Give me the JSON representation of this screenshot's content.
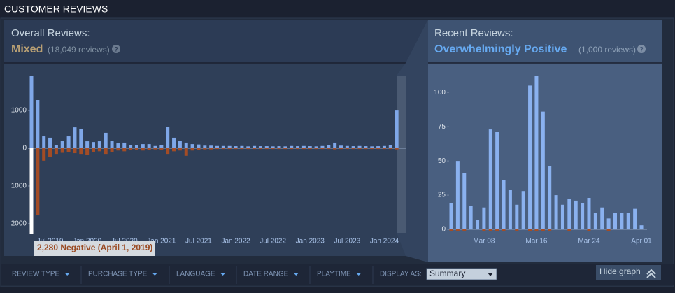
{
  "header": {
    "title": "CUSTOMER REVIEWS"
  },
  "chart_data": [
    {
      "type": "bar",
      "title": "Overall Reviews:",
      "rating": "Mixed",
      "count": "(18,049 reviews)",
      "help": "?",
      "annotation": "2,280 Negative (April 1, 2019)",
      "categories": [
        null,
        null,
        null,
        "Jul 2019",
        null,
        null,
        null,
        null,
        null,
        "Jan 2020",
        null,
        null,
        null,
        null,
        null,
        "Jul 2020",
        null,
        null,
        null,
        null,
        null,
        "Jan 2021",
        null,
        null,
        null,
        null,
        null,
        "Jul 2021",
        null,
        null,
        null,
        null,
        null,
        "Jan 2022",
        null,
        null,
        null,
        null,
        null,
        "Jul 2022",
        null,
        null,
        null,
        null,
        null,
        "Jan 2023",
        null,
        null,
        null,
        null,
        null,
        "Jul 2023",
        null,
        null,
        null,
        null,
        null,
        "Jan 2024",
        null,
        null
      ],
      "series": [
        {
          "color": "#7fa7e8",
          "values": [
            1925,
            1280,
            315,
            280,
            90,
            200,
            315,
            555,
            520,
            185,
            165,
            185,
            410,
            200,
            130,
            150,
            75,
            90,
            110,
            110,
            60,
            80,
            575,
            280,
            200,
            150,
            110,
            100,
            70,
            70,
            60,
            60,
            60,
            55,
            60,
            50,
            60,
            55,
            55,
            50,
            55,
            50,
            60,
            55,
            60,
            55,
            50,
            60,
            80,
            150,
            70,
            60,
            55,
            60,
            55,
            50,
            55,
            60,
            90,
            1000
          ]
        },
        {
          "color": "#a34c25",
          "values": [
            -2280,
            -1780,
            -330,
            -230,
            -150,
            -120,
            -100,
            -130,
            -150,
            -170,
            -100,
            -80,
            -150,
            -100,
            -60,
            -80,
            -40,
            -50,
            -60,
            -50,
            -30,
            -40,
            -150,
            -80,
            -60,
            -200,
            -60,
            -40,
            -30,
            -30,
            -20,
            -20,
            -20,
            -20,
            -20,
            -20,
            -20,
            -20,
            -20,
            -20,
            -20,
            -20,
            -20,
            -20,
            -20,
            -20,
            -20,
            -20,
            -20,
            -30,
            -20,
            -20,
            -20,
            -20,
            -20,
            -20,
            -20,
            -20,
            -20,
            -30
          ]
        }
      ],
      "ylim": [
        -2280,
        2170
      ],
      "yticks": [
        1000,
        0,
        {
          "value": -1000,
          "label": "1000"
        },
        {
          "value": -2000,
          "label": "2000"
        }
      ]
    },
    {
      "type": "bar",
      "title": "Recent Reviews:",
      "rating": "Overwhelmingly Positive",
      "count": "(1,000 reviews)",
      "help": "?",
      "categories": [
        null,
        null,
        null,
        null,
        null,
        "Mar 08",
        null,
        null,
        null,
        null,
        null,
        null,
        null,
        "Mar 16",
        null,
        null,
        null,
        null,
        null,
        null,
        null,
        "Mar 24",
        null,
        null,
        null,
        null,
        null,
        null,
        null,
        "Apr 01"
      ],
      "series": [
        {
          "color": "#8ab1ef",
          "values": [
            19,
            50,
            41,
            17,
            7,
            16,
            73,
            71,
            36,
            29,
            18,
            28,
            105,
            112,
            86,
            46,
            25,
            18,
            22,
            21,
            19,
            23,
            12,
            16,
            8,
            12,
            12,
            12,
            15,
            3
          ]
        },
        {
          "color": "#a34c25",
          "values": [
            -1,
            -1,
            -1,
            0,
            0,
            -1,
            -1,
            -1,
            -1,
            0,
            -1,
            0,
            -1,
            -1,
            -1,
            -1,
            0,
            0,
            -1,
            0,
            0,
            -1,
            0,
            0,
            -1,
            0,
            0,
            0,
            0,
            0
          ]
        }
      ],
      "ylim": [
        -1,
        119
      ],
      "yticks": [
        0,
        25,
        50,
        75,
        100
      ]
    }
  ],
  "filters": {
    "items": [
      "REVIEW TYPE",
      "PURCHASE TYPE",
      "LANGUAGE",
      "DATE RANGE",
      "PLAYTIME"
    ],
    "display_as_label": "DISPLAY AS:",
    "display_as_value": "Summary",
    "hide_graph": "Hide graph"
  }
}
